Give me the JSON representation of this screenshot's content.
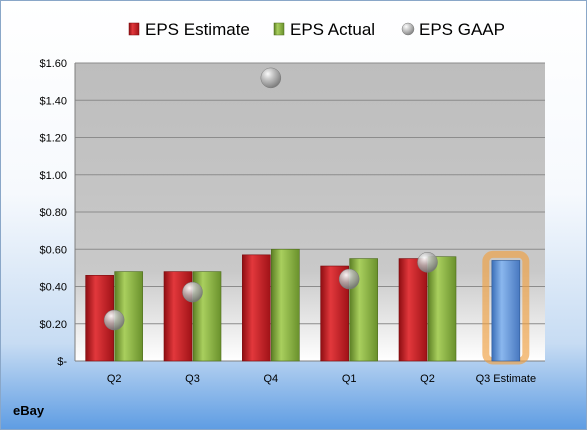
{
  "chart_data": {
    "type": "bar",
    "categories": [
      "Q2",
      "Q3",
      "Q4",
      "Q1",
      "Q2",
      "Q3 Estimate"
    ],
    "series": [
      {
        "name": "EPS Estimate",
        "color": "#c0161b",
        "values": [
          0.46,
          0.48,
          0.57,
          0.51,
          0.55,
          null
        ]
      },
      {
        "name": "EPS Actual",
        "color": "#7fa93a",
        "values": [
          0.48,
          0.48,
          0.6,
          0.55,
          0.56,
          null
        ]
      },
      {
        "name": "EPS GAAP",
        "color": "#a6a6a6",
        "marker": "bubble",
        "values": [
          0.22,
          0.37,
          1.52,
          0.44,
          0.53,
          null
        ]
      }
    ],
    "estimate": {
      "category": "Q3 Estimate",
      "value": 0.54,
      "color": "#5b8fd6",
      "highlight": "#f0a040"
    },
    "yticks": [
      "$-",
      "$0.20",
      "$0.40",
      "$0.60",
      "$0.80",
      "$1.00",
      "$1.20",
      "$1.40",
      "$1.60"
    ],
    "ylim": [
      0,
      1.6
    ],
    "legend": "top",
    "grid": true
  },
  "company": "eBay"
}
